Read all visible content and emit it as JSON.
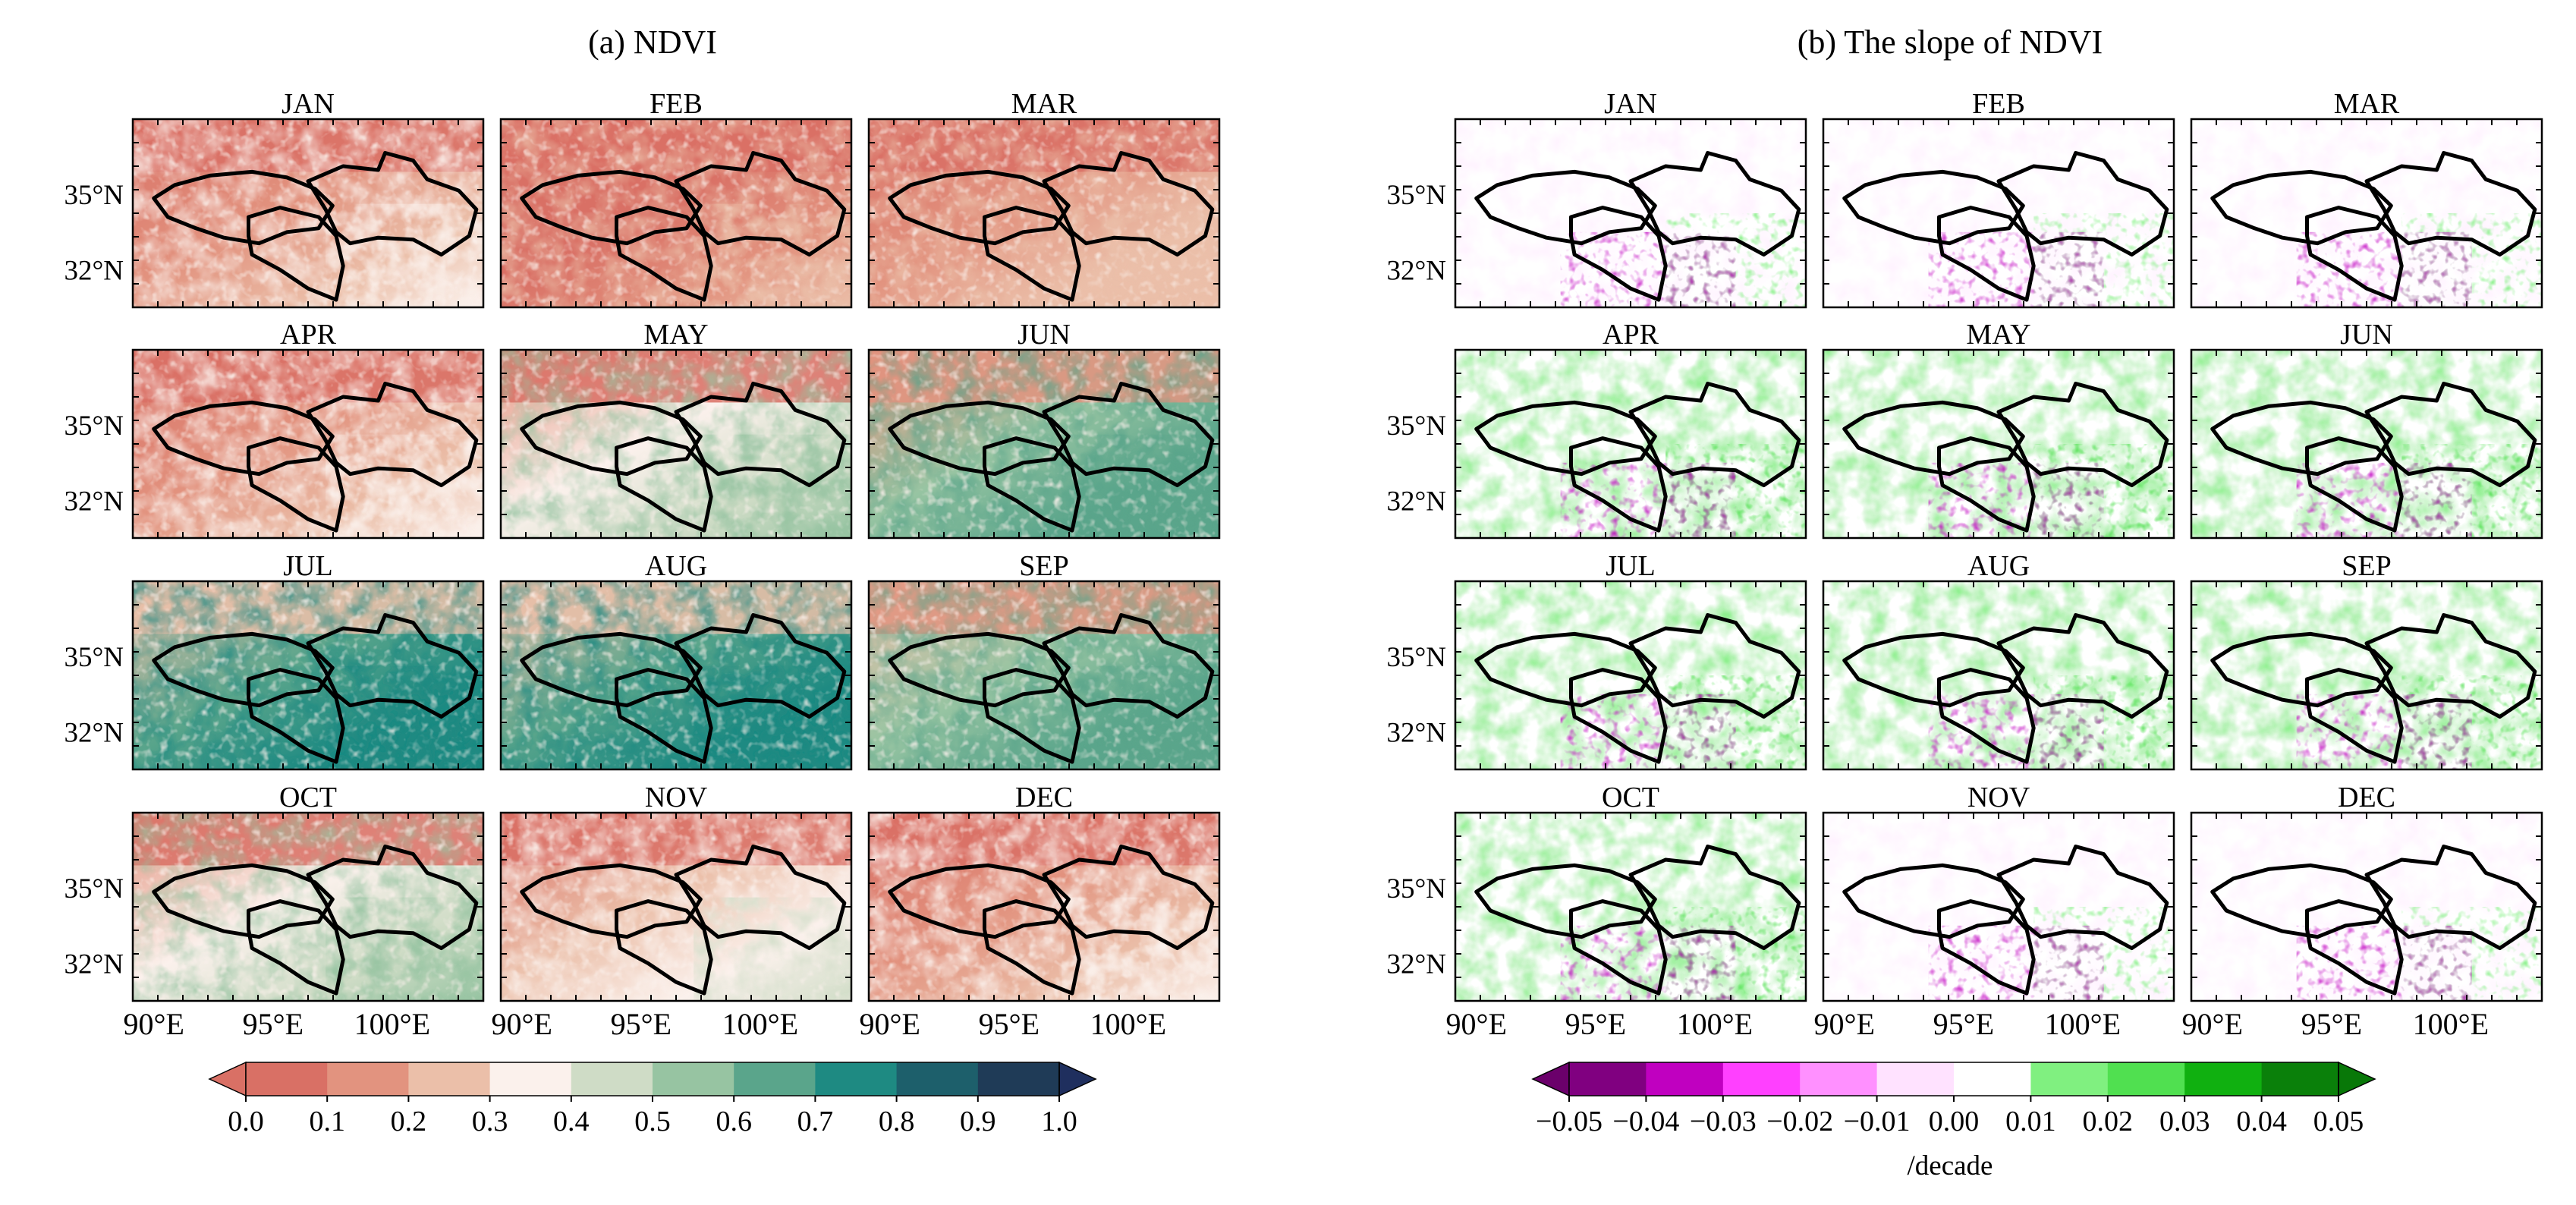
{
  "figure": {
    "panel_a": {
      "title": "(a) NDVI",
      "colorbar": {
        "ticks": [
          "0.0",
          "0.1",
          "0.2",
          "0.3",
          "0.4",
          "0.5",
          "0.6",
          "0.7",
          "0.8",
          "0.9",
          "1.0"
        ],
        "colors": [
          "#d97065",
          "#e2937f",
          "#ebbfa9",
          "#fbf1ec",
          "#cfdcc6",
          "#97c4a2",
          "#5aa58b",
          "#1e8a82",
          "#1d5f6b",
          "#1f3b57"
        ],
        "under_color": "#d97065",
        "over_color": "#1f2f5e"
      }
    },
    "panel_b": {
      "title": "(b) The slope of NDVI",
      "colorbar": {
        "ticks": [
          "−0.05",
          "−0.04",
          "−0.03",
          "−0.02",
          "−0.01",
          "0.00",
          "0.01",
          "0.02",
          "0.03",
          "0.04",
          "0.05"
        ],
        "colors": [
          "#800080",
          "#c000c0",
          "#ff40ff",
          "#ff90ff",
          "#ffe2ff",
          "#ffffff",
          "#80f080",
          "#50e050",
          "#10b010",
          "#0a800a"
        ],
        "under_color": "#6b006b",
        "over_color": "#087808",
        "unit": "/decade"
      }
    },
    "months": [
      "JAN",
      "FEB",
      "MAR",
      "APR",
      "MAY",
      "JUN",
      "JUL",
      "AUG",
      "SEP",
      "OCT",
      "NOV",
      "DEC"
    ],
    "lat_ticks": [
      "35°N",
      "32°N"
    ],
    "lon_ticks": [
      "90°E",
      "95°E",
      "100°E"
    ],
    "ndvi_monthly_level": [
      0.22,
      0.12,
      0.15,
      0.22,
      0.4,
      0.55,
      0.66,
      0.66,
      0.56,
      0.4,
      0.28,
      0.22
    ],
    "slope_monthly_level": [
      0.003,
      0.006,
      0.006,
      0.01,
      0.018,
      0.018,
      0.016,
      0.014,
      0.015,
      0.015,
      0.003,
      0.002
    ]
  }
}
